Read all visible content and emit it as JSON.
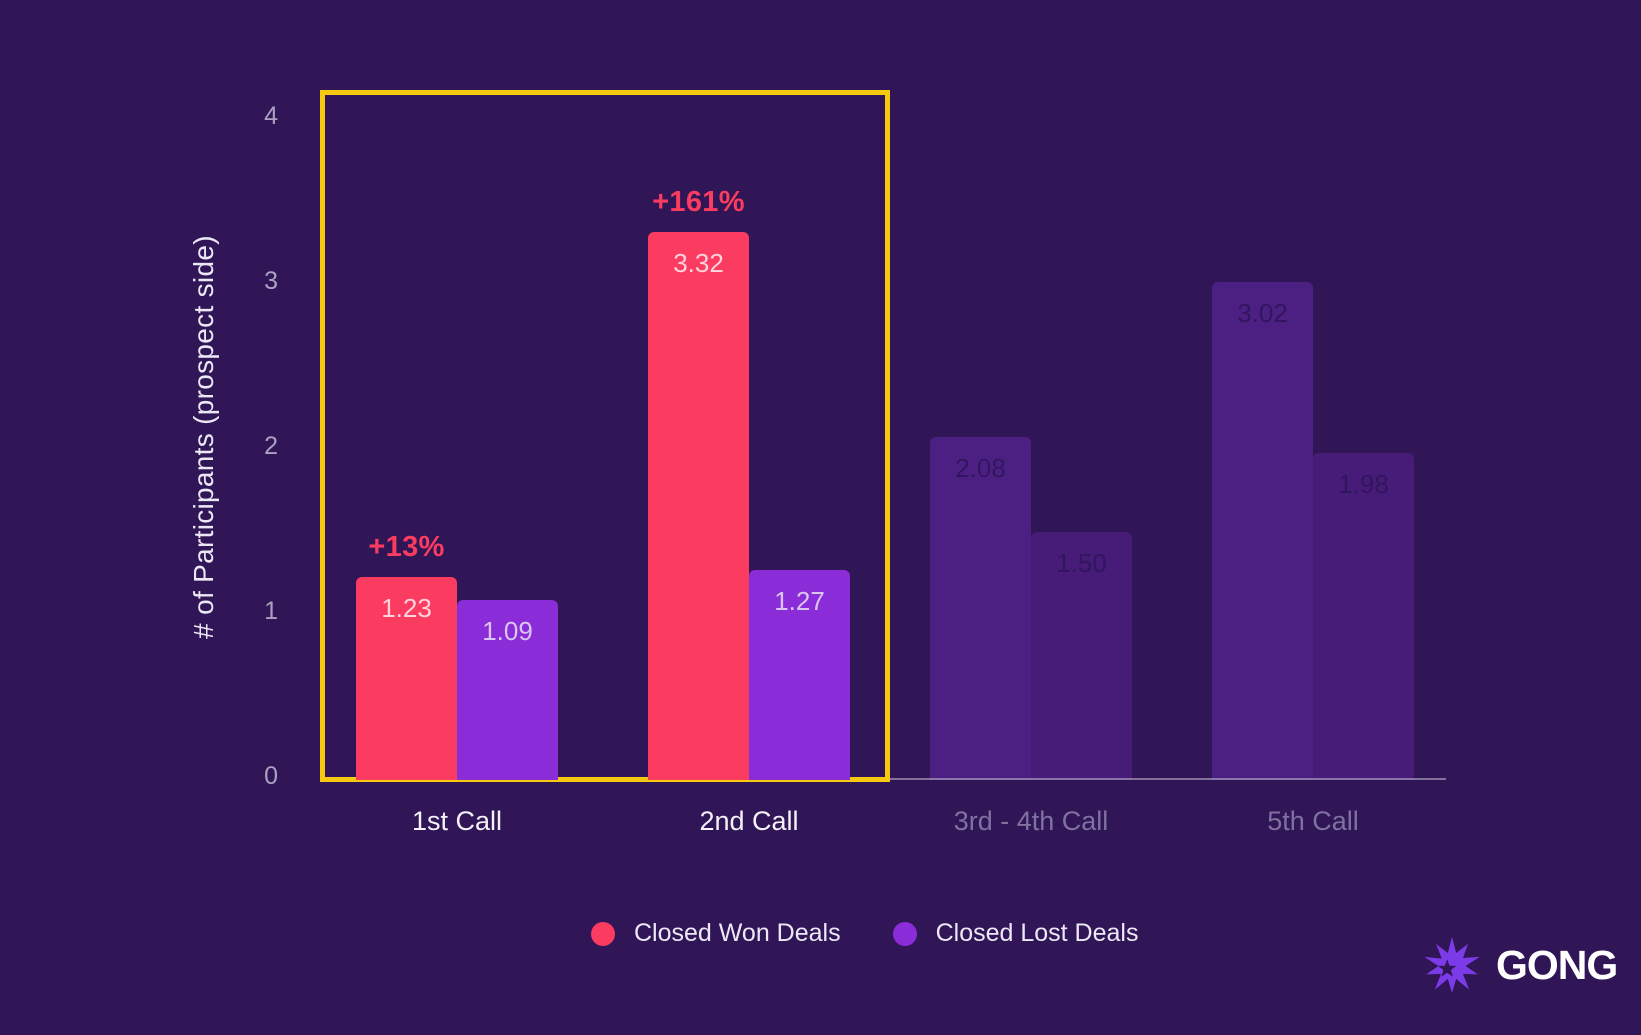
{
  "chart_data": {
    "type": "bar",
    "title": "",
    "ylabel": "# of Participants (prospect side)",
    "xlabel": "",
    "ylim": [
      0,
      4
    ],
    "yticks": [
      "0",
      "1",
      "2",
      "3",
      "4"
    ],
    "grid": false,
    "categories": [
      {
        "label": "1st Call",
        "highlighted": true
      },
      {
        "label": "2nd Call",
        "highlighted": true
      },
      {
        "label": "3rd - 4th Call",
        "highlighted": false
      },
      {
        "label": "5th Call",
        "highlighted": false
      }
    ],
    "series": [
      {
        "name": "Closed Won Deals",
        "values": [
          1.23,
          3.32,
          2.08,
          3.02
        ],
        "labels": [
          "1.23",
          "3.32",
          "2.08",
          "3.02"
        ]
      },
      {
        "name": "Closed Lost Deals",
        "values": [
          1.09,
          1.27,
          1.5,
          1.98
        ],
        "labels": [
          "1.09",
          "1.27",
          "1.50",
          "1.98"
        ]
      }
    ],
    "annotations": [
      {
        "category_index": 0,
        "text": "+13%"
      },
      {
        "category_index": 1,
        "text": "+161%"
      }
    ],
    "highlight_box": {
      "categories": [
        "1st Call",
        "2nd Call"
      ]
    },
    "legend": {
      "position": "bottom",
      "entries": [
        "Closed Won Deals",
        "Closed Lost Deals"
      ]
    }
  },
  "colors": {
    "background": "#301656",
    "won": "#FB3B5F",
    "lost": "#8B2CD9",
    "won_muted": "#4C2083",
    "lost_muted": "#471C78",
    "highlight": "#F6C90F",
    "annotation": "#FB3B5F",
    "value_on_won": "#FFD2DC",
    "value_on_lost": "#DAC5F0",
    "value_on_muted": "#32155F",
    "axis_text": "#ABA1C2",
    "label_active": "#F4F1F9",
    "label_muted": "#7F71A0",
    "legend_text": "#EDE8F6",
    "logo_purple": "#7C3BE8"
  },
  "icons": {
    "logo": "gong-starburst-icon",
    "legend_marker": "circle-dot-icon"
  },
  "logo": {
    "text": "GONG"
  }
}
